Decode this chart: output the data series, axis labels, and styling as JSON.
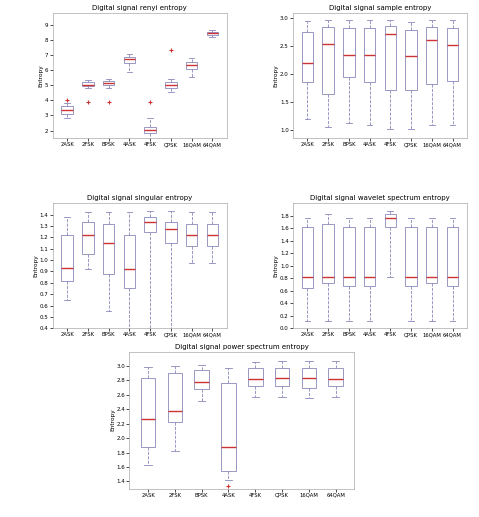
{
  "categories": [
    "2ASK",
    "2FSK",
    "BPSK",
    "4ASK",
    "4FSK",
    "QPSK",
    "16QAM",
    "64QAM"
  ],
  "titles": [
    "Digital signal renyi entropy",
    "Digital signal sample entropy",
    "Digital signal singular entropy",
    "Digital signal wavelet spectrum entropy",
    "Digital signal power spectrum entropy"
  ],
  "ylabel": "Entropy",
  "median_color": "#cc3333",
  "box_edge_color": "#8888bb",
  "whisker_color": "#8888bb",
  "flier_color": "#cc3333",
  "renyi": {
    "whislo": [
      2.85,
      4.85,
      4.85,
      5.85,
      1.25,
      4.55,
      5.55,
      8.22
    ],
    "q1": [
      3.1,
      4.95,
      5.0,
      6.5,
      1.85,
      4.85,
      6.1,
      8.35
    ],
    "med": [
      3.35,
      5.05,
      5.12,
      6.75,
      2.02,
      5.05,
      6.32,
      8.45
    ],
    "q3": [
      3.6,
      5.2,
      5.28,
      6.9,
      2.22,
      5.2,
      6.55,
      8.55
    ],
    "whishi": [
      3.8,
      5.35,
      5.42,
      7.1,
      2.82,
      5.42,
      6.82,
      8.65
    ],
    "fliers_x": [
      1,
      2,
      3,
      5,
      6
    ],
    "fliers_y": [
      4.0,
      3.88,
      3.88,
      3.92,
      7.35
    ]
  },
  "sample": {
    "whislo": [
      1.2,
      1.05,
      1.12,
      1.08,
      1.02,
      1.02,
      1.08,
      1.08
    ],
    "q1": [
      1.85,
      1.65,
      1.95,
      1.85,
      1.72,
      1.72,
      1.82,
      1.87
    ],
    "med": [
      2.2,
      2.55,
      2.35,
      2.35,
      2.72,
      2.32,
      2.62,
      2.52
    ],
    "q3": [
      2.75,
      2.85,
      2.82,
      2.82,
      2.87,
      2.8,
      2.84,
      2.82
    ],
    "whishi": [
      2.95,
      2.98,
      2.98,
      2.98,
      2.98,
      2.94,
      2.98,
      2.98
    ]
  },
  "singular": {
    "whislo": [
      0.65,
      0.92,
      0.55,
      0.38,
      0.38,
      0.38,
      0.97,
      0.97
    ],
    "q1": [
      0.82,
      1.05,
      0.88,
      0.75,
      1.25,
      1.15,
      1.12,
      1.12
    ],
    "med": [
      0.93,
      1.22,
      1.15,
      0.92,
      1.33,
      1.27,
      1.22,
      1.22
    ],
    "q3": [
      1.22,
      1.33,
      1.32,
      1.22,
      1.38,
      1.33,
      1.32,
      1.32
    ],
    "whishi": [
      1.38,
      1.42,
      1.42,
      1.42,
      1.43,
      1.43,
      1.42,
      1.42
    ]
  },
  "wavelet": {
    "whislo": [
      0.12,
      0.12,
      0.12,
      0.12,
      0.82,
      0.12,
      0.12,
      0.12
    ],
    "q1": [
      0.65,
      0.72,
      0.67,
      0.67,
      1.62,
      0.67,
      0.72,
      0.67
    ],
    "med": [
      0.82,
      0.82,
      0.82,
      0.82,
      1.77,
      0.82,
      0.82,
      0.82
    ],
    "q3": [
      1.62,
      1.67,
      1.62,
      1.62,
      1.83,
      1.62,
      1.62,
      1.62
    ],
    "whishi": [
      1.77,
      1.82,
      1.77,
      1.77,
      1.87,
      1.77,
      1.77,
      1.77
    ]
  },
  "power": {
    "whislo": [
      1.62,
      1.82,
      2.52,
      1.42,
      2.57,
      2.57,
      2.55,
      2.57
    ],
    "q1": [
      1.87,
      2.22,
      2.68,
      1.55,
      2.72,
      2.72,
      2.7,
      2.72
    ],
    "med": [
      2.27,
      2.37,
      2.78,
      1.87,
      2.82,
      2.84,
      2.84,
      2.82
    ],
    "q3": [
      2.84,
      2.9,
      2.95,
      2.77,
      2.97,
      2.97,
      2.97,
      2.97
    ],
    "whishi": [
      2.98,
      3.0,
      3.02,
      2.97,
      3.05,
      3.07,
      3.07,
      3.07
    ],
    "fliers_x": [
      4
    ],
    "fliers_y": [
      1.33
    ]
  }
}
